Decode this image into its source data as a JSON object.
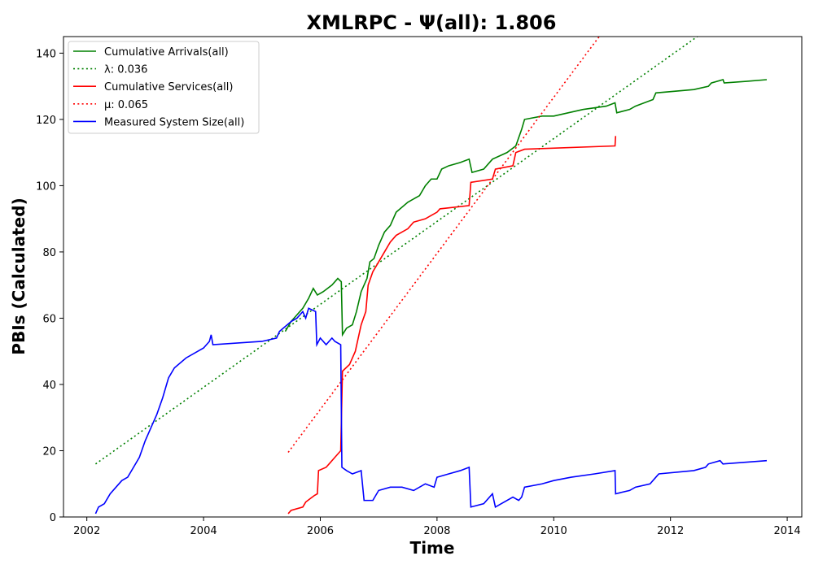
{
  "chart_data": {
    "type": "line",
    "title": "XMLRPC -  Ψ(all): 1.806",
    "xlabel": "Time",
    "ylabel": "PBIs (Calculated)",
    "xlim": [
      2001.6,
      2014.25
    ],
    "ylim": [
      0,
      145
    ],
    "x_ticks": [
      2002,
      2004,
      2006,
      2008,
      2010,
      2012,
      2014
    ],
    "y_ticks": [
      0,
      20,
      40,
      60,
      80,
      100,
      120,
      140
    ],
    "grid": false,
    "legend_position": "top-left",
    "series": [
      {
        "name": "Cumulative Arrivals(all)",
        "style": "solid",
        "color": "#008000",
        "points": [
          [
            2005.4,
            56
          ],
          [
            2005.5,
            59
          ],
          [
            2005.6,
            61
          ],
          [
            2005.7,
            63
          ],
          [
            2005.8,
            66
          ],
          [
            2005.88,
            69
          ],
          [
            2005.95,
            67
          ],
          [
            2006.05,
            68
          ],
          [
            2006.2,
            70
          ],
          [
            2006.3,
            72
          ],
          [
            2006.36,
            71
          ],
          [
            2006.38,
            55
          ],
          [
            2006.45,
            57
          ],
          [
            2006.55,
            58
          ],
          [
            2006.62,
            62
          ],
          [
            2006.7,
            68
          ],
          [
            2006.8,
            72
          ],
          [
            2006.85,
            77
          ],
          [
            2006.92,
            78
          ],
          [
            2007.0,
            82
          ],
          [
            2007.1,
            86
          ],
          [
            2007.2,
            88
          ],
          [
            2007.3,
            92
          ],
          [
            2007.5,
            95
          ],
          [
            2007.7,
            97
          ],
          [
            2007.8,
            100
          ],
          [
            2007.9,
            102
          ],
          [
            2008.0,
            102
          ],
          [
            2008.08,
            105
          ],
          [
            2008.2,
            106
          ],
          [
            2008.4,
            107
          ],
          [
            2008.55,
            108
          ],
          [
            2008.6,
            104
          ],
          [
            2008.8,
            105
          ],
          [
            2008.95,
            108
          ],
          [
            2009.2,
            110
          ],
          [
            2009.35,
            112
          ],
          [
            2009.45,
            117
          ],
          [
            2009.5,
            120
          ],
          [
            2009.8,
            121
          ],
          [
            2010.0,
            121
          ],
          [
            2010.5,
            123
          ],
          [
            2010.9,
            124
          ],
          [
            2011.05,
            125
          ],
          [
            2011.08,
            122
          ],
          [
            2011.3,
            123
          ],
          [
            2011.4,
            124
          ],
          [
            2011.7,
            126
          ],
          [
            2011.75,
            128
          ],
          [
            2012.4,
            129
          ],
          [
            2012.65,
            130
          ],
          [
            2012.7,
            131
          ],
          [
            2012.9,
            132
          ],
          [
            2012.92,
            131
          ],
          [
            2013.3,
            131.5
          ],
          [
            2013.65,
            132
          ]
        ]
      },
      {
        "name": "λ: 0.036",
        "style": "dotted",
        "color": "#008000",
        "points": [
          [
            2002.15,
            16
          ],
          [
            2012.5,
            145.5
          ]
        ]
      },
      {
        "name": "Cumulative Services(all)",
        "style": "solid",
        "color": "#ff0000",
        "points": [
          [
            2005.45,
            1
          ],
          [
            2005.5,
            2
          ],
          [
            2005.7,
            3
          ],
          [
            2005.75,
            4.5
          ],
          [
            2005.9,
            6.5
          ],
          [
            2005.95,
            7
          ],
          [
            2005.97,
            14
          ],
          [
            2006.1,
            15
          ],
          [
            2006.15,
            16
          ],
          [
            2006.25,
            18
          ],
          [
            2006.35,
            20
          ],
          [
            2006.38,
            44
          ],
          [
            2006.5,
            46
          ],
          [
            2006.6,
            50
          ],
          [
            2006.7,
            58
          ],
          [
            2006.78,
            62
          ],
          [
            2006.82,
            70
          ],
          [
            2006.9,
            74
          ],
          [
            2007.0,
            77
          ],
          [
            2007.1,
            80
          ],
          [
            2007.2,
            83
          ],
          [
            2007.3,
            85
          ],
          [
            2007.5,
            87
          ],
          [
            2007.6,
            89
          ],
          [
            2007.8,
            90
          ],
          [
            2007.9,
            91
          ],
          [
            2008.0,
            92
          ],
          [
            2008.05,
            93
          ],
          [
            2008.3,
            93.5
          ],
          [
            2008.55,
            94
          ],
          [
            2008.58,
            101
          ],
          [
            2008.95,
            102
          ],
          [
            2009.0,
            105
          ],
          [
            2009.3,
            106
          ],
          [
            2009.35,
            110
          ],
          [
            2009.5,
            111
          ],
          [
            2011.05,
            112
          ],
          [
            2011.06,
            115
          ]
        ]
      },
      {
        "name": "μ: 0.065",
        "style": "dotted",
        "color": "#ff0000",
        "points": [
          [
            2005.45,
            19.5
          ],
          [
            2010.8,
            145.5
          ]
        ]
      },
      {
        "name": "Measured System Size(all)",
        "style": "solid",
        "color": "#0000ff",
        "points": [
          [
            2002.15,
            1
          ],
          [
            2002.2,
            3
          ],
          [
            2002.3,
            4
          ],
          [
            2002.4,
            7
          ],
          [
            2002.5,
            9
          ],
          [
            2002.6,
            11
          ],
          [
            2002.7,
            12
          ],
          [
            2002.8,
            15
          ],
          [
            2002.9,
            18
          ],
          [
            2003.0,
            23
          ],
          [
            2003.1,
            27
          ],
          [
            2003.2,
            31
          ],
          [
            2003.3,
            36
          ],
          [
            2003.4,
            42
          ],
          [
            2003.5,
            45
          ],
          [
            2003.7,
            48
          ],
          [
            2003.9,
            50
          ],
          [
            2004.0,
            51
          ],
          [
            2004.1,
            53
          ],
          [
            2004.13,
            55
          ],
          [
            2004.16,
            52
          ],
          [
            2005.0,
            53
          ],
          [
            2005.25,
            54
          ],
          [
            2005.3,
            56
          ],
          [
            2005.5,
            59
          ],
          [
            2005.6,
            60
          ],
          [
            2005.7,
            62
          ],
          [
            2005.75,
            60
          ],
          [
            2005.8,
            63
          ],
          [
            2005.92,
            62
          ],
          [
            2005.94,
            52
          ],
          [
            2006.0,
            54
          ],
          [
            2006.1,
            52
          ],
          [
            2006.2,
            54
          ],
          [
            2006.25,
            53
          ],
          [
            2006.35,
            52
          ],
          [
            2006.37,
            15
          ],
          [
            2006.45,
            14
          ],
          [
            2006.55,
            13
          ],
          [
            2006.7,
            14
          ],
          [
            2006.75,
            5
          ],
          [
            2006.9,
            5
          ],
          [
            2007.0,
            8
          ],
          [
            2007.2,
            9
          ],
          [
            2007.4,
            9
          ],
          [
            2007.6,
            8
          ],
          [
            2007.8,
            10
          ],
          [
            2007.95,
            9
          ],
          [
            2008.0,
            12
          ],
          [
            2008.2,
            13
          ],
          [
            2008.4,
            14
          ],
          [
            2008.55,
            15
          ],
          [
            2008.58,
            3
          ],
          [
            2008.8,
            4
          ],
          [
            2008.95,
            7
          ],
          [
            2009.0,
            3
          ],
          [
            2009.1,
            4
          ],
          [
            2009.3,
            6
          ],
          [
            2009.4,
            5
          ],
          [
            2009.45,
            6
          ],
          [
            2009.5,
            9
          ],
          [
            2009.8,
            10
          ],
          [
            2010.0,
            11
          ],
          [
            2010.3,
            12
          ],
          [
            2010.7,
            13
          ],
          [
            2011.05,
            14
          ],
          [
            2011.06,
            7
          ],
          [
            2011.3,
            8
          ],
          [
            2011.4,
            9
          ],
          [
            2011.65,
            10
          ],
          [
            2011.75,
            12
          ],
          [
            2011.8,
            13
          ],
          [
            2012.4,
            14
          ],
          [
            2012.6,
            15
          ],
          [
            2012.65,
            16
          ],
          [
            2012.85,
            17
          ],
          [
            2012.9,
            16
          ],
          [
            2013.65,
            17
          ]
        ]
      }
    ]
  }
}
